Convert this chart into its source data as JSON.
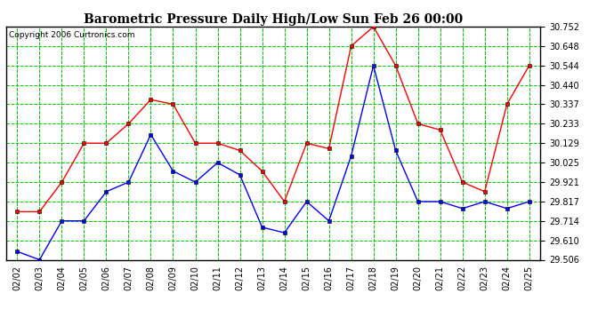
{
  "title": "Barometric Pressure Daily High/Low Sun Feb 26 00:00",
  "copyright": "Copyright 2006 Curtronics.com",
  "dates": [
    "02/02",
    "02/03",
    "02/04",
    "02/05",
    "02/06",
    "02/07",
    "02/08",
    "02/09",
    "02/10",
    "02/11",
    "02/12",
    "02/13",
    "02/14",
    "02/15",
    "02/16",
    "02/17",
    "02/18",
    "02/19",
    "02/20",
    "02/21",
    "02/22",
    "02/23",
    "02/24",
    "02/25"
  ],
  "high_red": [
    29.763,
    29.763,
    29.921,
    30.129,
    30.129,
    30.233,
    30.362,
    30.337,
    30.129,
    30.129,
    30.09,
    29.98,
    29.817,
    30.129,
    30.1,
    30.648,
    30.752,
    30.544,
    30.233,
    30.2,
    29.921,
    29.87,
    30.337,
    30.544
  ],
  "low_blue": [
    29.55,
    29.506,
    29.714,
    29.714,
    29.87,
    29.921,
    30.175,
    29.98,
    29.921,
    30.025,
    29.96,
    29.68,
    29.65,
    29.817,
    29.714,
    30.06,
    30.544,
    30.09,
    29.817,
    29.817,
    29.78,
    29.817,
    29.78,
    29.817
  ],
  "ylim_min": 29.506,
  "ylim_max": 30.752,
  "yticks": [
    29.506,
    29.61,
    29.714,
    29.817,
    29.921,
    30.025,
    30.129,
    30.233,
    30.337,
    30.44,
    30.544,
    30.648,
    30.752
  ],
  "bg_color": "#ffffff",
  "plot_bg": "#ffffff",
  "grid_color": "#00cc00",
  "red_color": "#ff0000",
  "blue_color": "#0000ff",
  "title_color": "#000000",
  "border_color": "#000000",
  "title_fontsize": 10,
  "tick_fontsize": 7,
  "copyright_fontsize": 6.5
}
